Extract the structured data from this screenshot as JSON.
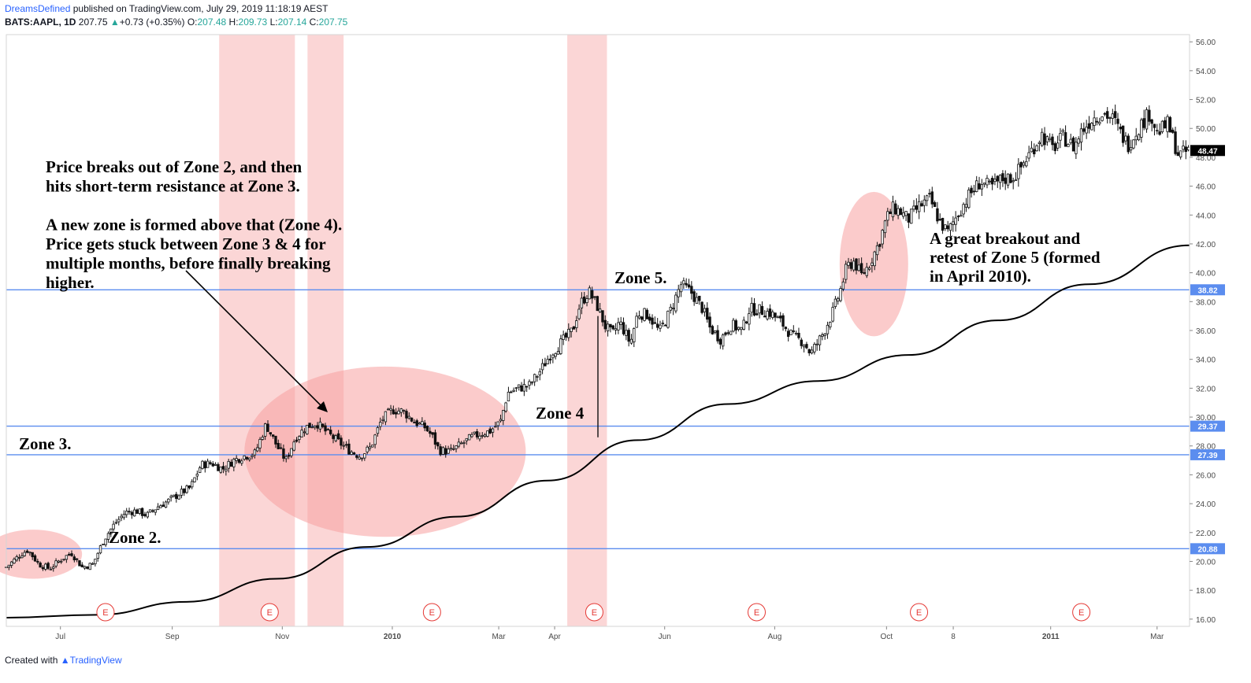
{
  "header": {
    "author": "DreamsDefined",
    "published": "published on TradingView.com, July 29, 2019 11:18:19 AEST",
    "symbol": "BATS:AAPL, 1D",
    "last": "207.75",
    "up_arrow": "▲",
    "change": "+0.73 (+0.35%)",
    "o_label": "O:",
    "o_val": "207.48",
    "h_label": "H:",
    "h_val": "209.73",
    "l_label": "L:",
    "l_val": "207.14",
    "c_label": "C:",
    "c_val": "207.75"
  },
  "footer": {
    "created_with": "Created with",
    "brand": "TradingView"
  },
  "colors": {
    "zone_line": "#5b8def",
    "zone_shade": "#f8b4b4",
    "ellipse": "#f7a0a0",
    "candle": "#111111",
    "ma_line": "#000000",
    "earnings": "#e53935",
    "last_price_bg": "#000000"
  },
  "chart_data": {
    "type": "candlestick",
    "ylim": [
      15.5,
      56.5
    ],
    "y_ticks": [
      "16.00",
      "18.00",
      "20.00",
      "22.00",
      "24.00",
      "26.00",
      "28.00",
      "30.00",
      "32.00",
      "34.00",
      "36.00",
      "38.00",
      "40.00",
      "42.00",
      "44.00",
      "46.00",
      "48.00",
      "50.00",
      "52.00",
      "54.00",
      "56.00"
    ],
    "x_ticks": [
      {
        "label": "Jul",
        "day": 30,
        "bold": false
      },
      {
        "label": "Sep",
        "day": 92,
        "bold": false
      },
      {
        "label": "Nov",
        "day": 153,
        "bold": false
      },
      {
        "label": "2010",
        "day": 214,
        "bold": true
      },
      {
        "label": "Mar",
        "day": 273,
        "bold": false
      },
      {
        "label": "Apr",
        "day": 304,
        "bold": false
      },
      {
        "label": "Jun",
        "day": 365,
        "bold": false
      },
      {
        "label": "Aug",
        "day": 426,
        "bold": false
      },
      {
        "label": "Oct",
        "day": 488,
        "bold": false
      },
      {
        "label": "8",
        "day": 525,
        "bold": false
      },
      {
        "label": "2011",
        "day": 579,
        "bold": true
      },
      {
        "label": "Mar",
        "day": 638,
        "bold": false
      }
    ],
    "x_range_days": [
      0,
      656
    ],
    "price_path": [
      [
        0,
        19.6
      ],
      [
        8,
        20.5
      ],
      [
        12,
        20.8
      ],
      [
        18,
        19.8
      ],
      [
        24,
        19.5
      ],
      [
        30,
        20.1
      ],
      [
        36,
        20.6
      ],
      [
        42,
        19.6
      ],
      [
        48,
        19.8
      ],
      [
        54,
        21.5
      ],
      [
        60,
        22.6
      ],
      [
        66,
        23.4
      ],
      [
        72,
        23.5
      ],
      [
        78,
        23.2
      ],
      [
        84,
        23.8
      ],
      [
        90,
        24.2
      ],
      [
        96,
        24.7
      ],
      [
        102,
        25.1
      ],
      [
        108,
        26.7
      ],
      [
        114,
        26.8
      ],
      [
        120,
        26.4
      ],
      [
        126,
        27.0
      ],
      [
        132,
        27.3
      ],
      [
        138,
        27.5
      ],
      [
        144,
        29.5
      ],
      [
        150,
        28.0
      ],
      [
        155,
        27.0
      ],
      [
        160,
        28.5
      ],
      [
        166,
        29.3
      ],
      [
        172,
        29.6
      ],
      [
        178,
        28.9
      ],
      [
        184,
        28.3
      ],
      [
        190,
        27.7
      ],
      [
        196,
        27.3
      ],
      [
        202,
        27.9
      ],
      [
        208,
        29.8
      ],
      [
        214,
        30.5
      ],
      [
        220,
        30.4
      ],
      [
        226,
        29.7
      ],
      [
        232,
        29.3
      ],
      [
        236,
        28.7
      ],
      [
        240,
        27.7
      ],
      [
        246,
        27.6
      ],
      [
        252,
        28.1
      ],
      [
        258,
        28.6
      ],
      [
        264,
        28.9
      ],
      [
        268,
        29.0
      ],
      [
        274,
        29.7
      ],
      [
        278,
        31.7
      ],
      [
        284,
        32.0
      ],
      [
        290,
        32.2
      ],
      [
        296,
        33.2
      ],
      [
        302,
        34.4
      ],
      [
        308,
        35.2
      ],
      [
        314,
        36.0
      ],
      [
        318,
        37.8
      ],
      [
        323,
        38.7
      ],
      [
        328,
        37.6
      ],
      [
        332,
        36.3
      ],
      [
        336,
        35.7
      ],
      [
        340,
        36.6
      ],
      [
        346,
        35.1
      ],
      [
        350,
        37.2
      ],
      [
        356,
        37.1
      ],
      [
        362,
        35.9
      ],
      [
        368,
        37.3
      ],
      [
        374,
        39.2
      ],
      [
        380,
        38.6
      ],
      [
        386,
        37.5
      ],
      [
        390,
        36.2
      ],
      [
        396,
        35.4
      ],
      [
        402,
        36.4
      ],
      [
        408,
        36.0
      ],
      [
        412,
        37.5
      ],
      [
        418,
        37.4
      ],
      [
        424,
        37.2
      ],
      [
        430,
        36.5
      ],
      [
        436,
        35.6
      ],
      [
        442,
        35.2
      ],
      [
        446,
        34.4
      ],
      [
        452,
        35.6
      ],
      [
        458,
        37.2
      ],
      [
        462,
        38.6
      ],
      [
        466,
        40.4
      ],
      [
        470,
        40.8
      ],
      [
        474,
        39.8
      ],
      [
        478,
        40.5
      ],
      [
        484,
        42.1
      ],
      [
        488,
        43.8
      ],
      [
        492,
        44.5
      ],
      [
        496,
        44.2
      ],
      [
        500,
        43.7
      ],
      [
        506,
        44.6
      ],
      [
        512,
        45.1
      ],
      [
        518,
        43.4
      ],
      [
        522,
        42.8
      ],
      [
        528,
        44.2
      ],
      [
        534,
        45.4
      ],
      [
        540,
        46.3
      ],
      [
        546,
        45.9
      ],
      [
        552,
        46.5
      ],
      [
        558,
        46.6
      ],
      [
        562,
        47.2
      ],
      [
        568,
        48.4
      ],
      [
        574,
        49.6
      ],
      [
        580,
        48.6
      ],
      [
        586,
        49.4
      ],
      [
        592,
        48.7
      ],
      [
        596,
        49.8
      ],
      [
        602,
        50.7
      ],
      [
        608,
        51.1
      ],
      [
        614,
        50.6
      ],
      [
        618,
        49.6
      ],
      [
        622,
        48.9
      ],
      [
        628,
        50.1
      ],
      [
        634,
        51.1
      ],
      [
        638,
        49.7
      ],
      [
        644,
        50.3
      ],
      [
        650,
        48.1
      ],
      [
        656,
        48.5
      ]
    ],
    "gap_events": [
      {
        "day": 328,
        "low": 28.6,
        "high": 37.0
      }
    ],
    "moving_average": [
      [
        0,
        16.1
      ],
      [
        50,
        16.3
      ],
      [
        100,
        17.2
      ],
      [
        150,
        18.8
      ],
      [
        200,
        21.0
      ],
      [
        250,
        23.1
      ],
      [
        300,
        25.6
      ],
      [
        350,
        28.4
      ],
      [
        400,
        30.9
      ],
      [
        450,
        32.5
      ],
      [
        500,
        34.3
      ],
      [
        550,
        36.7
      ],
      [
        600,
        39.2
      ],
      [
        656,
        41.9
      ]
    ],
    "zone_levels": [
      {
        "value": 38.82,
        "label": "38.82"
      },
      {
        "value": 29.37,
        "label": "29.37"
      },
      {
        "value": 27.39,
        "label": "27.39"
      },
      {
        "value": 20.88,
        "label": "20.88"
      }
    ],
    "last_price": {
      "value": 48.47,
      "label": "48.47"
    },
    "shaded_periods": [
      {
        "start_day": 118,
        "end_day": 160
      },
      {
        "start_day": 167,
        "end_day": 187
      },
      {
        "start_day": 311,
        "end_day": 333
      }
    ],
    "ellipses": [
      {
        "cx_day": 15,
        "cy": 20.5,
        "rx_days": 27,
        "ry": 1.7
      },
      {
        "cx_day": 210,
        "cy": 27.6,
        "rx_days": 78,
        "ry": 5.9
      },
      {
        "cx_day": 481,
        "cy": 40.6,
        "rx_days": 19,
        "ry": 5.0
      }
    ],
    "earnings_markers": [
      {
        "day": 55,
        "label": "E"
      },
      {
        "day": 146,
        "label": "E"
      },
      {
        "day": 236,
        "label": "E"
      },
      {
        "day": 326,
        "label": "E"
      },
      {
        "day": 416,
        "label": "E"
      },
      {
        "day": 506,
        "label": "E"
      },
      {
        "day": 596,
        "label": "E"
      }
    ],
    "annotations": {
      "main_block": [
        "Price breaks out of Zone 2, and then",
        "hits short-term resistance at Zone 3.",
        "",
        "A new zone is formed above that (Zone 4).",
        "Price gets stuck between Zone 3 & 4 for",
        "multiple months, before finally breaking",
        "higher."
      ],
      "zone3": "Zone 3.",
      "zone2": "Zone 2.",
      "zone4": "Zone 4",
      "zone5": "Zone 5.",
      "retest_block": [
        "A great breakout and",
        "retest of Zone 5 (formed",
        "in April 2010)."
      ]
    }
  }
}
